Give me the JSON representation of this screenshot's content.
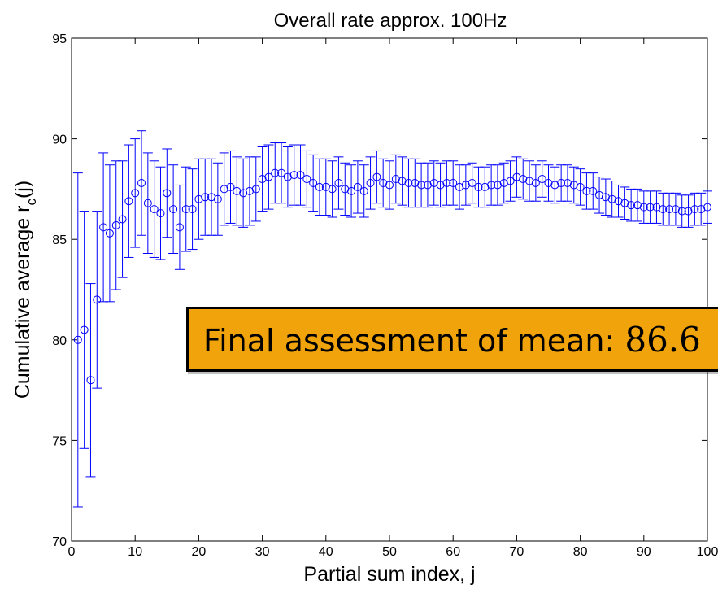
{
  "chart_data": {
    "type": "scatter",
    "title": "Overall rate approx. 100Hz",
    "xlabel": "Partial sum index, j",
    "ylabel": "Cumulative average r",
    "ylabel_sub": "c",
    "ylabel_suffix": "(j)",
    "xlim": [
      0,
      100
    ],
    "ylim": [
      70,
      95
    ],
    "xticks": [
      0,
      10,
      20,
      30,
      40,
      50,
      60,
      70,
      80,
      90,
      100
    ],
    "yticks": [
      70,
      75,
      80,
      85,
      90,
      95
    ],
    "x_tick_labels": [
      "0",
      "10",
      "20",
      "30",
      "40",
      "50",
      "60",
      "70",
      "80",
      "90",
      "100"
    ],
    "y_tick_labels": [
      "70",
      "75",
      "80",
      "85",
      "90",
      "95"
    ],
    "grid": false,
    "marker": "circle",
    "color": "#0000ff",
    "x": [
      1,
      2,
      3,
      4,
      5,
      6,
      7,
      8,
      9,
      10,
      11,
      12,
      13,
      14,
      15,
      16,
      17,
      18,
      19,
      20,
      21,
      22,
      23,
      24,
      25,
      26,
      27,
      28,
      29,
      30,
      31,
      32,
      33,
      34,
      35,
      36,
      37,
      38,
      39,
      40,
      41,
      42,
      43,
      44,
      45,
      46,
      47,
      48,
      49,
      50,
      51,
      52,
      53,
      54,
      55,
      56,
      57,
      58,
      59,
      60,
      61,
      62,
      63,
      64,
      65,
      66,
      67,
      68,
      69,
      70,
      71,
      72,
      73,
      74,
      75,
      76,
      77,
      78,
      79,
      80,
      81,
      82,
      83,
      84,
      85,
      86,
      87,
      88,
      89,
      90,
      91,
      92,
      93,
      94,
      95,
      96,
      97,
      98,
      99,
      100
    ],
    "y": [
      80.0,
      80.5,
      78.0,
      82.0,
      85.6,
      85.3,
      85.7,
      86.0,
      86.9,
      87.3,
      87.8,
      86.8,
      86.5,
      86.3,
      87.3,
      86.5,
      85.6,
      86.5,
      86.5,
      87.0,
      87.1,
      87.1,
      87.0,
      87.5,
      87.6,
      87.4,
      87.3,
      87.4,
      87.5,
      88.0,
      88.1,
      88.3,
      88.3,
      88.1,
      88.2,
      88.2,
      88.0,
      87.8,
      87.6,
      87.6,
      87.5,
      87.8,
      87.5,
      87.4,
      87.6,
      87.4,
      87.8,
      88.1,
      87.8,
      87.7,
      88.0,
      87.9,
      87.8,
      87.8,
      87.7,
      87.7,
      87.8,
      87.7,
      87.8,
      87.8,
      87.6,
      87.7,
      87.8,
      87.6,
      87.6,
      87.7,
      87.7,
      87.8,
      87.9,
      88.1,
      88.0,
      87.9,
      87.8,
      88.0,
      87.8,
      87.7,
      87.8,
      87.8,
      87.7,
      87.6,
      87.4,
      87.4,
      87.2,
      87.1,
      87.0,
      86.9,
      86.8,
      86.7,
      86.7,
      86.6,
      86.6,
      86.6,
      86.5,
      86.5,
      86.5,
      86.4,
      86.4,
      86.5,
      86.5,
      86.6
    ],
    "err": [
      8.3,
      5.9,
      4.8,
      4.4,
      3.7,
      3.4,
      3.2,
      2.9,
      2.8,
      2.7,
      2.6,
      2.5,
      2.4,
      2.3,
      2.2,
      2.2,
      2.1,
      2.1,
      2.0,
      2.0,
      1.9,
      1.9,
      1.8,
      1.8,
      1.8,
      1.7,
      1.7,
      1.7,
      1.6,
      1.6,
      1.6,
      1.5,
      1.5,
      1.5,
      1.5,
      1.5,
      1.4,
      1.4,
      1.4,
      1.4,
      1.4,
      1.3,
      1.3,
      1.3,
      1.3,
      1.3,
      1.3,
      1.3,
      1.2,
      1.2,
      1.2,
      1.2,
      1.2,
      1.2,
      1.1,
      1.1,
      1.1,
      1.1,
      1.1,
      1.1,
      1.1,
      1.0,
      1.0,
      1.0,
      1.0,
      1.0,
      1.0,
      1.0,
      1.0,
      1.0,
      1.0,
      1.0,
      0.9,
      0.9,
      0.9,
      0.9,
      0.9,
      0.9,
      0.9,
      0.9,
      0.9,
      0.9,
      0.9,
      0.9,
      0.9,
      0.8,
      0.8,
      0.8,
      0.8,
      0.8,
      0.8,
      0.8,
      0.8,
      0.8,
      0.8,
      0.8,
      0.8,
      0.8,
      0.8,
      0.8
    ]
  },
  "callout": {
    "label": "Final assessment of mean:",
    "value": "86.6"
  }
}
